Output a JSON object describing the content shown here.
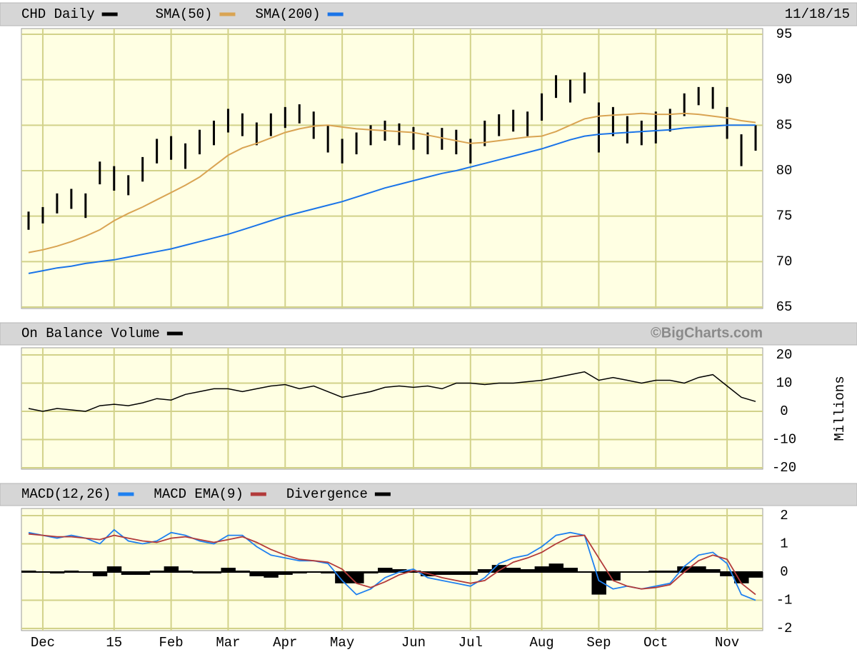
{
  "chart_data": [
    {
      "type": "ohlc",
      "date": "11/18/15",
      "ylim": [
        65,
        95
      ],
      "yticks": [
        65,
        70,
        75,
        80,
        85,
        90,
        95
      ],
      "grid": true,
      "series": [
        {
          "name": "CHD Daily",
          "color": "#000000",
          "high": [
            75.5,
            76,
            77.5,
            78,
            77.5,
            81,
            80.5,
            79.5,
            81.5,
            83.5,
            83.8,
            83,
            84.5,
            85.5,
            86.8,
            86.3,
            85.3,
            86.3,
            87,
            87.3,
            86.5,
            85,
            83.5,
            84.2,
            85,
            85.5,
            85.2,
            84.8,
            84.2,
            84.7,
            84.5,
            83.5,
            85.5,
            86.2,
            86.7,
            86.5,
            88.5,
            90.5,
            90,
            90.8,
            87.5,
            87,
            86,
            85.5,
            86.5,
            86.8,
            88.5,
            89.2,
            89.2,
            87,
            84,
            85
          ],
          "low": [
            73.5,
            74.2,
            75.3,
            75.8,
            74.8,
            78.5,
            77.8,
            77.3,
            78.8,
            80.8,
            81.2,
            80.2,
            81.8,
            82.8,
            84.2,
            83.8,
            82.8,
            83.8,
            84.7,
            85.2,
            83.5,
            82,
            80.8,
            81.8,
            82.8,
            83.3,
            82.8,
            82.3,
            81.8,
            82.3,
            81.8,
            80.8,
            82.7,
            83.8,
            84.3,
            83.8,
            85.5,
            88,
            87.5,
            88.5,
            82,
            83.8,
            83,
            82.8,
            83,
            84.3,
            86,
            87.2,
            86.8,
            83.5,
            80.5,
            82.2
          ]
        },
        {
          "name": "SMA(50)",
          "color": "#d9a453",
          "values": [
            71,
            71.3,
            71.7,
            72.2,
            72.8,
            73.5,
            74.5,
            75.3,
            76,
            76.8,
            77.6,
            78.4,
            79.3,
            80.5,
            81.7,
            82.5,
            83,
            83.6,
            84.2,
            84.6,
            84.9,
            85,
            84.8,
            84.6,
            84.5,
            84.4,
            84.3,
            84.2,
            83.9,
            83.6,
            83.3,
            83,
            83.1,
            83.3,
            83.5,
            83.7,
            83.8,
            84.3,
            85,
            85.7,
            86,
            86.1,
            86.2,
            86.3,
            86.2,
            86.2,
            86.3,
            86.2,
            86,
            85.8,
            85.5,
            85.3
          ]
        },
        {
          "name": "SMA(200)",
          "color": "#1a74e8",
          "values": [
            68.7,
            69,
            69.3,
            69.5,
            69.8,
            70,
            70.2,
            70.5,
            70.8,
            71.1,
            71.4,
            71.8,
            72.2,
            72.6,
            73,
            73.5,
            74,
            74.5,
            75,
            75.4,
            75.8,
            76.2,
            76.6,
            77.1,
            77.6,
            78.1,
            78.5,
            78.9,
            79.3,
            79.7,
            80,
            80.4,
            80.8,
            81.2,
            81.6,
            82,
            82.4,
            82.9,
            83.4,
            83.8,
            84,
            84.1,
            84.2,
            84.3,
            84.4,
            84.5,
            84.7,
            84.8,
            84.9,
            85,
            85,
            85
          ]
        }
      ]
    },
    {
      "type": "line",
      "watermark": "©BigCharts.com",
      "y_label": "Millions",
      "ylim": [
        -20,
        20
      ],
      "yticks": [
        -20,
        -10,
        0,
        10,
        20
      ],
      "grid": true,
      "series": [
        {
          "name": "On Balance Volume",
          "color": "#000000",
          "values": [
            1,
            0,
            1,
            0.5,
            0,
            2,
            2.5,
            2,
            3,
            4.5,
            4,
            6,
            7,
            8,
            8,
            7,
            8,
            9,
            9.5,
            8,
            9,
            7,
            5,
            6,
            7,
            8.5,
            9,
            8.5,
            9,
            8,
            10,
            10,
            9.5,
            10,
            10,
            10.5,
            11,
            12,
            13,
            14,
            11,
            12,
            11,
            10,
            11,
            11,
            10,
            12,
            13,
            9,
            5,
            3.5
          ]
        }
      ]
    },
    {
      "type": "macd",
      "ylim": [
        -2,
        2
      ],
      "yticks": [
        -2,
        -1,
        0,
        1,
        2
      ],
      "grid": true,
      "categories": [
        null,
        "Dec",
        null,
        null,
        null,
        null,
        "15",
        null,
        null,
        null,
        "Feb",
        null,
        null,
        null,
        "Mar",
        null,
        null,
        null,
        "Apr",
        null,
        null,
        null,
        "May",
        null,
        null,
        null,
        null,
        "Jun",
        null,
        null,
        null,
        "Jul",
        null,
        null,
        null,
        null,
        "Aug",
        null,
        null,
        null,
        "Sep",
        null,
        null,
        null,
        "Oct",
        null,
        null,
        null,
        null,
        "Nov",
        null,
        null
      ],
      "series": [
        {
          "name": "MACD(12,26)",
          "color": "#1e80f0",
          "values": [
            1.4,
            1.3,
            1.2,
            1.3,
            1.2,
            1.0,
            1.5,
            1.1,
            1.0,
            1.1,
            1.4,
            1.3,
            1.1,
            1.0,
            1.3,
            1.3,
            0.9,
            0.6,
            0.5,
            0.4,
            0.4,
            0.3,
            -0.3,
            -0.8,
            -0.6,
            -0.2,
            0,
            0.1,
            -0.2,
            -0.3,
            -0.4,
            -0.5,
            -0.2,
            0.3,
            0.5,
            0.6,
            0.9,
            1.3,
            1.4,
            1.3,
            -0.3,
            -0.6,
            -0.5,
            -0.6,
            -0.5,
            -0.4,
            0.2,
            0.6,
            0.7,
            0.3,
            -0.8,
            -1.0
          ]
        },
        {
          "name": "MACD EMA(9)",
          "color": "#b23a3a",
          "values": [
            1.35,
            1.3,
            1.25,
            1.25,
            1.2,
            1.15,
            1.3,
            1.2,
            1.1,
            1.05,
            1.2,
            1.25,
            1.15,
            1.05,
            1.15,
            1.25,
            1.05,
            0.8,
            0.6,
            0.45,
            0.4,
            0.35,
            0.1,
            -0.4,
            -0.55,
            -0.35,
            -0.1,
            0.05,
            -0.05,
            -0.2,
            -0.3,
            -0.4,
            -0.3,
            0.05,
            0.35,
            0.5,
            0.7,
            1.0,
            1.25,
            1.3,
            0.5,
            -0.3,
            -0.5,
            -0.6,
            -0.55,
            -0.45,
            0.0,
            0.4,
            0.6,
            0.45,
            -0.4,
            -0.8
          ]
        },
        {
          "name": "Divergence",
          "color": "#000000",
          "kind": "bar",
          "values": [
            0.05,
            0,
            -0.05,
            0.05,
            0,
            -0.15,
            0.2,
            -0.1,
            -0.1,
            0.05,
            0.2,
            0.05,
            -0.05,
            -0.05,
            0.15,
            0.05,
            -0.15,
            -0.2,
            -0.1,
            -0.05,
            0,
            -0.05,
            -0.4,
            -0.4,
            -0.05,
            0.15,
            0.1,
            0.05,
            -0.15,
            -0.1,
            -0.1,
            -0.1,
            0.1,
            0.25,
            0.15,
            0.1,
            0.2,
            0.3,
            0.15,
            0,
            -0.8,
            -0.3,
            0,
            0,
            0.05,
            0.05,
            0.2,
            0.2,
            0.1,
            -0.15,
            -0.4,
            -0.2
          ]
        }
      ]
    }
  ]
}
